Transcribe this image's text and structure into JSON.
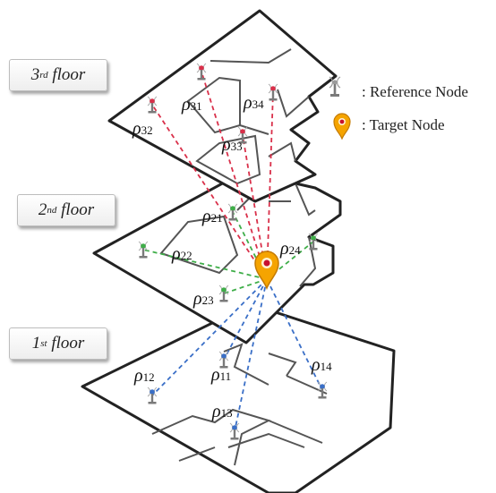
{
  "floors": [
    {
      "ord": "3",
      "suffix": "rd",
      "word": "floor"
    },
    {
      "ord": "2",
      "suffix": "nd",
      "word": "floor"
    },
    {
      "ord": "1",
      "suffix": "st",
      "word": "floor"
    }
  ],
  "legend": {
    "reference": ": Reference Node",
    "target": ": Target Node"
  },
  "nodes": [
    {
      "id": "11",
      "floor": 1,
      "color": "#3a6fc7"
    },
    {
      "id": "12",
      "floor": 1,
      "color": "#3a6fc7"
    },
    {
      "id": "13",
      "floor": 1,
      "color": "#3a6fc7"
    },
    {
      "id": "14",
      "floor": 1,
      "color": "#3a6fc7"
    },
    {
      "id": "21",
      "floor": 2,
      "color": "#3fae49"
    },
    {
      "id": "22",
      "floor": 2,
      "color": "#3fae49"
    },
    {
      "id": "23",
      "floor": 2,
      "color": "#3fae49"
    },
    {
      "id": "24",
      "floor": 2,
      "color": "#3fae49"
    },
    {
      "id": "31",
      "floor": 3,
      "color": "#d9304a"
    },
    {
      "id": "32",
      "floor": 3,
      "color": "#d9304a"
    },
    {
      "id": "33",
      "floor": 3,
      "color": "#d9304a"
    },
    {
      "id": "34",
      "floor": 3,
      "color": "#d9304a"
    }
  ],
  "distance_symbol": "ρ",
  "colors": {
    "floor1_links": "#3a6fc7",
    "floor2_links": "#3fae49",
    "floor3_links": "#d9304a",
    "target_fill": "#f5a400",
    "target_dot": "#c8102e",
    "walls": "#222222"
  }
}
